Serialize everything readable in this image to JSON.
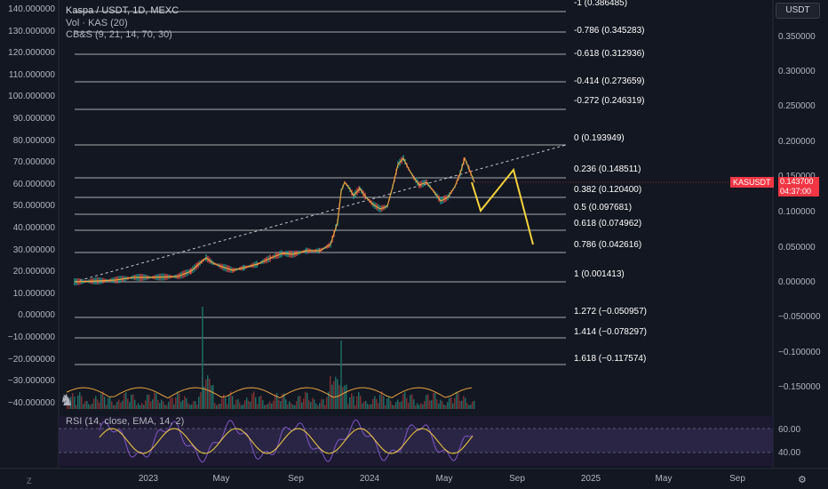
{
  "header": {
    "title": "Kaspa / USDT, 1D, MEXC",
    "vol": "Vol · KAS (20)",
    "cbs": "CB&S (9, 21, 14, 70, 30)",
    "currency_button": "USDT"
  },
  "left_axis": [
    "140.000000",
    "130.000000",
    "120.000000",
    "110.000000",
    "100.000000",
    "90.000000",
    "80.000000",
    "70.000000",
    "60.000000",
    "50.000000",
    "40.000000",
    "30.000000",
    "20.000000",
    "10.000000",
    "0.000000",
    "−10.000000",
    "−20.000000",
    "−30.000000",
    "−40.000000"
  ],
  "right_axis": [
    "0.350000",
    "0.300000",
    "0.250000",
    "0.200000",
    "0.150000",
    "0.100000",
    "0.050000",
    "0.000000",
    "−0.050000",
    "−0.100000",
    "−0.150000"
  ],
  "fib_levels": [
    {
      "label": "-1 (0.386485)"
    },
    {
      "label": "-0.786 (0.345283)"
    },
    {
      "label": "-0.618 (0.312936)"
    },
    {
      "label": "-0.414 (0.273659)"
    },
    {
      "label": "-0.272 (0.246319)"
    },
    {
      "label": "0 (0.193949)"
    },
    {
      "label": "0.236 (0.148511)"
    },
    {
      "label": "0.382 (0.120400)"
    },
    {
      "label": "0.5 (0.097681)"
    },
    {
      "label": "0.618 (0.074962)"
    },
    {
      "label": "0.786 (0.042616)"
    },
    {
      "label": "1 (0.001413)"
    },
    {
      "label": "1.272 (−0.050957)"
    },
    {
      "label": "1.414 (−0.078297)"
    },
    {
      "label": "1.618 (−0.117574)"
    }
  ],
  "price_tag": {
    "symbol": "KASUSDT",
    "price": "0.143700",
    "countdown": "04:37:00"
  },
  "rsi": {
    "label": "RSI (14, close, EMA, 14, 2)",
    "ticks": [
      "60.00",
      "40.00"
    ]
  },
  "x_axis": [
    "2023",
    "May",
    "Sep",
    "2024",
    "May",
    "Sep",
    "2025",
    "May",
    "Sep"
  ],
  "controls": {
    "z": "Z",
    "settings_icon": "gear-icon"
  },
  "colors": {
    "background": "#131722",
    "fib_line": "#ffffff",
    "projection": "#f5d23c",
    "price_line": "#e8a33c",
    "rsi_line": "#7e57c2",
    "rsi_signal": "#f5d23c",
    "badge": "#f23645"
  }
}
